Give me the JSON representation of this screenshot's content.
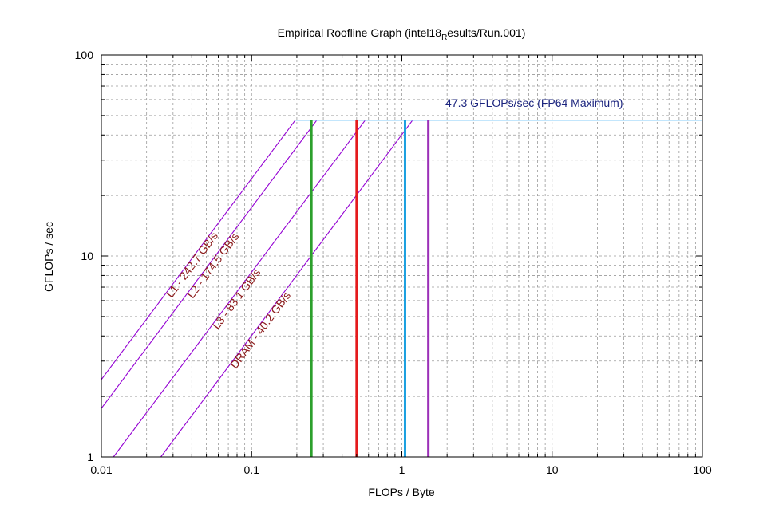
{
  "chart_data": {
    "type": "line",
    "title": "Empirical Roofline Graph (intel18",
    "title_subscript": "R",
    "title_rest": "esults/Run.001)",
    "xlabel": "FLOPs / Byte",
    "ylabel": "GFLOPs / sec",
    "x_scale": "log",
    "y_scale": "log",
    "xlim": [
      0.01,
      100
    ],
    "ylim": [
      1,
      100
    ],
    "x_ticks": [
      0.01,
      0.1,
      1,
      10,
      100
    ],
    "x_tick_labels": [
      "0.01",
      "0.1",
      "1",
      "10",
      "100"
    ],
    "y_ticks": [
      1,
      10,
      100
    ],
    "y_tick_labels": [
      "1",
      "10",
      "100"
    ],
    "grid": true,
    "peak": {
      "value": 47.3,
      "label": "47.3 GFLOPs/sec (FP64 Maximum)",
      "color": "#87cefa",
      "label_color": "#1a237e"
    },
    "bandwidth_color": "#9400d3",
    "bandwidth_label_color": "#8b1a1a",
    "series": [
      {
        "name": "L1",
        "label": "L1 - 242.7 GB/s",
        "bandwidth": 242.7
      },
      {
        "name": "L2",
        "label": "L2 - 174.5 GB/s",
        "bandwidth": 174.5
      },
      {
        "name": "L3",
        "label": "L3 - 83.1 GB/s",
        "bandwidth": 83.1
      },
      {
        "name": "DRAM",
        "label": "DRAM - 40.2 GB/s",
        "bandwidth": 40.2
      }
    ],
    "markers": [
      {
        "x": 0.25,
        "color": "#2ca02c"
      },
      {
        "x": 0.5,
        "color": "#e41a1c"
      },
      {
        "x": 1.05,
        "color": "#1ca0e0"
      },
      {
        "x": 1.5,
        "color": "#9b30b8"
      }
    ]
  }
}
